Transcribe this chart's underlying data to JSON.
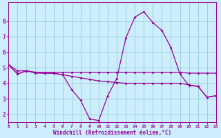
{
  "xlabel": "Windchill (Refroidissement éolien,°C)",
  "background_color": "#cceeff",
  "line_color": "#990099",
  "grid_color": "#99cccc",
  "x_hours": [
    0,
    1,
    2,
    3,
    4,
    5,
    6,
    7,
    8,
    9,
    10,
    11,
    12,
    13,
    14,
    15,
    16,
    17,
    18,
    19,
    20,
    21,
    22,
    23
  ],
  "series_flat": [
    5.2,
    4.8,
    4.8,
    4.7,
    4.7,
    4.7,
    4.7,
    4.7,
    4.7,
    4.7,
    4.7,
    4.7,
    4.7,
    4.7,
    4.7,
    4.7,
    4.7,
    4.7,
    4.7,
    4.7,
    4.65,
    4.65,
    4.65,
    4.65
  ],
  "series_curve": [
    5.2,
    4.6,
    4.8,
    4.7,
    4.65,
    4.65,
    4.55,
    3.6,
    2.9,
    1.7,
    1.6,
    3.2,
    4.3,
    6.9,
    8.25,
    8.6,
    7.9,
    7.4,
    6.3,
    4.6,
    3.85,
    3.8,
    3.1,
    3.2
  ],
  "series_mid": [
    5.2,
    4.6,
    4.8,
    4.65,
    4.65,
    4.65,
    4.55,
    4.45,
    4.35,
    4.25,
    4.15,
    4.1,
    4.05,
    4.0,
    4.0,
    4.0,
    4.0,
    4.0,
    4.0,
    4.0,
    3.9,
    3.8,
    3.1,
    3.2
  ],
  "xlim": [
    0,
    23
  ],
  "ylim": [
    1.5,
    9.2
  ],
  "yticks": [
    2,
    3,
    4,
    5,
    6,
    7,
    8
  ],
  "xticks": [
    0,
    1,
    2,
    3,
    4,
    5,
    6,
    7,
    8,
    9,
    10,
    11,
    12,
    13,
    14,
    15,
    16,
    17,
    18,
    19,
    20,
    21,
    22,
    23
  ],
  "marker": "D",
  "markersize": 2.0,
  "linewidth": 0.9
}
